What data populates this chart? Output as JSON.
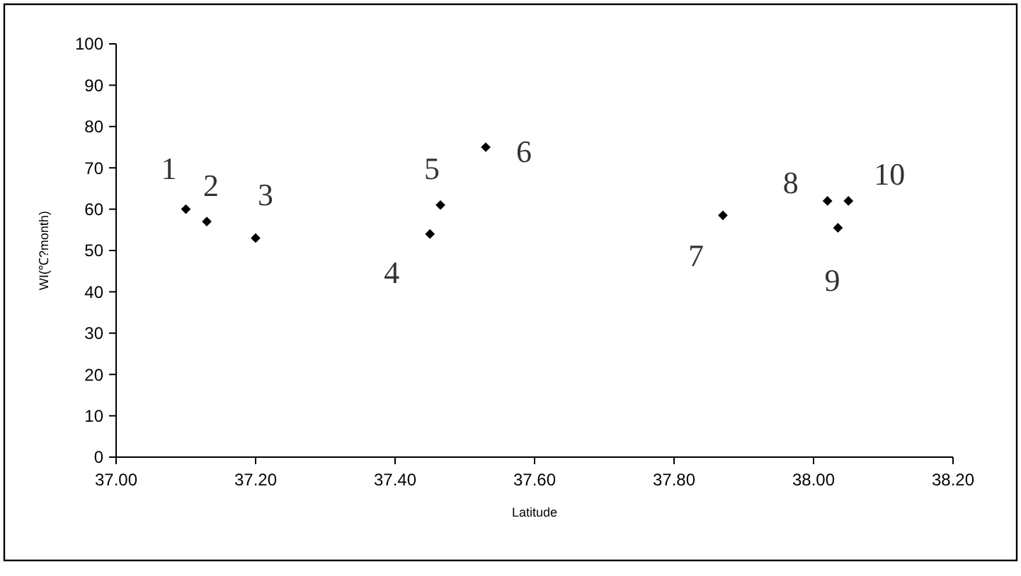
{
  "chart_data": {
    "type": "scatter",
    "xlabel": "Latitude",
    "ylabel": "WI(℃?month)",
    "x": [
      37.1,
      37.13,
      37.2,
      37.45,
      37.465,
      37.53,
      37.87,
      38.02,
      38.035,
      38.05
    ],
    "series": [
      {
        "color": "#000000",
        "values": [
          60,
          57,
          53,
          54,
          61,
          75,
          58.5,
          62,
          55.5,
          62
        ]
      }
    ],
    "marker": "diamond",
    "grid": false,
    "xlim": [
      37.0,
      38.2
    ],
    "xticks": [
      {
        "value": 37.0,
        "label": "37.00"
      },
      {
        "value": 37.2,
        "label": "37.20"
      },
      {
        "value": 37.4,
        "label": "37.40"
      },
      {
        "value": 37.6,
        "label": "37.60"
      },
      {
        "value": 37.8,
        "label": "37.80"
      },
      {
        "value": 38.0,
        "label": "38.00"
      },
      {
        "value": 38.2,
        "label": "38.20"
      }
    ],
    "ylim": [
      0,
      100
    ],
    "yticks": [
      0,
      10,
      20,
      30,
      40,
      50,
      60,
      70,
      80,
      90,
      100
    ],
    "annotations": [
      {
        "text": "1",
        "x": 37.1,
        "y": 60
      },
      {
        "text": "2",
        "x": 37.13,
        "y": 57
      },
      {
        "text": "3",
        "x": 37.2,
        "y": 53
      },
      {
        "text": "4",
        "x": 37.45,
        "y": 54
      },
      {
        "text": "5",
        "x": 37.465,
        "y": 61
      },
      {
        "text": "6",
        "x": 37.53,
        "y": 75
      },
      {
        "text": "7",
        "x": 37.87,
        "y": 58.5
      },
      {
        "text": "8",
        "x": 38.02,
        "y": 62
      },
      {
        "text": "9",
        "x": 38.035,
        "y": 55.5
      },
      {
        "text": "10",
        "x": 38.05,
        "y": 62
      }
    ]
  }
}
